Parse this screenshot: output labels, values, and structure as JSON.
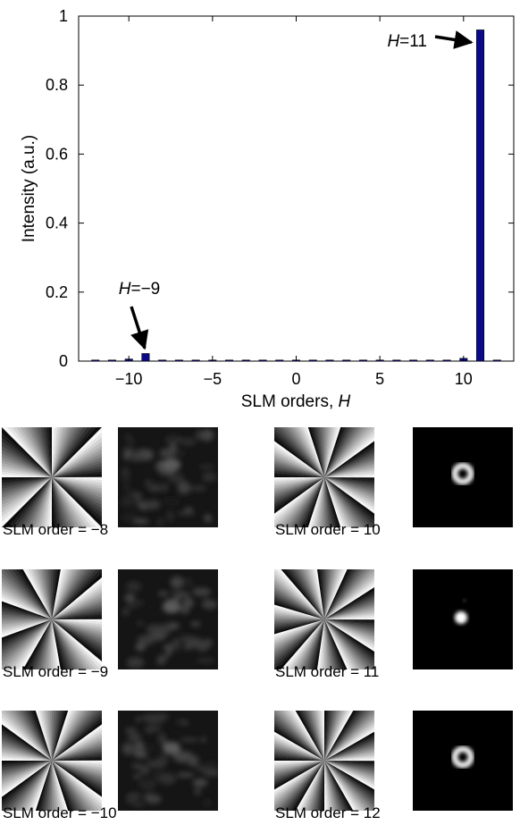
{
  "chart_data": {
    "type": "bar",
    "xlabel": "SLM orders, ",
    "xlabel_italic": "H",
    "ylabel": "Intensity (a.u.)",
    "xlim": [
      -13,
      13
    ],
    "ylim": [
      0,
      1
    ],
    "xticks": [
      -10,
      -5,
      0,
      5,
      10
    ],
    "xtick_labels": [
      "−10",
      "−5",
      "0",
      "5",
      "10"
    ],
    "yticks": [
      0,
      0.2,
      0.4,
      0.6,
      0.8,
      1
    ],
    "ytick_labels": [
      "0",
      "0.2",
      "0.4",
      "0.6",
      "0.8",
      "1"
    ],
    "bar_color": "#0a0a8a",
    "x": [
      -12,
      -11,
      -10,
      -9,
      -8,
      -7,
      -6,
      -5,
      -4,
      -3,
      -2,
      -1,
      0,
      1,
      2,
      3,
      4,
      5,
      6,
      7,
      8,
      9,
      10,
      11,
      12
    ],
    "values": [
      0.002,
      0.002,
      0.006,
      0.022,
      0.002,
      0.002,
      0.002,
      0.002,
      0.002,
      0.002,
      0.002,
      0.002,
      0.002,
      0.002,
      0.002,
      0.002,
      0.002,
      0.002,
      0.002,
      0.002,
      0.002,
      0.002,
      0.008,
      0.96,
      0.002
    ],
    "annotations": [
      {
        "text_italic": "H",
        "text": "=−9",
        "x": -9,
        "y": 0.022
      },
      {
        "text_italic": "H",
        "text": "=11",
        "x": 11,
        "y": 0.96
      }
    ]
  },
  "panels": [
    {
      "label": "SLM order = −8",
      "order": -8,
      "beam": "noise"
    },
    {
      "label": "SLM order = 10",
      "order": 10,
      "beam": "ring"
    },
    {
      "label": "SLM order = −9",
      "order": -9,
      "beam": "noise"
    },
    {
      "label": "SLM order = 11",
      "order": 11,
      "beam": "spot"
    },
    {
      "label": "SLM order = −10",
      "order": -10,
      "beam": "noise"
    },
    {
      "label": "SLM order = 12",
      "order": 12,
      "beam": "ring"
    }
  ]
}
